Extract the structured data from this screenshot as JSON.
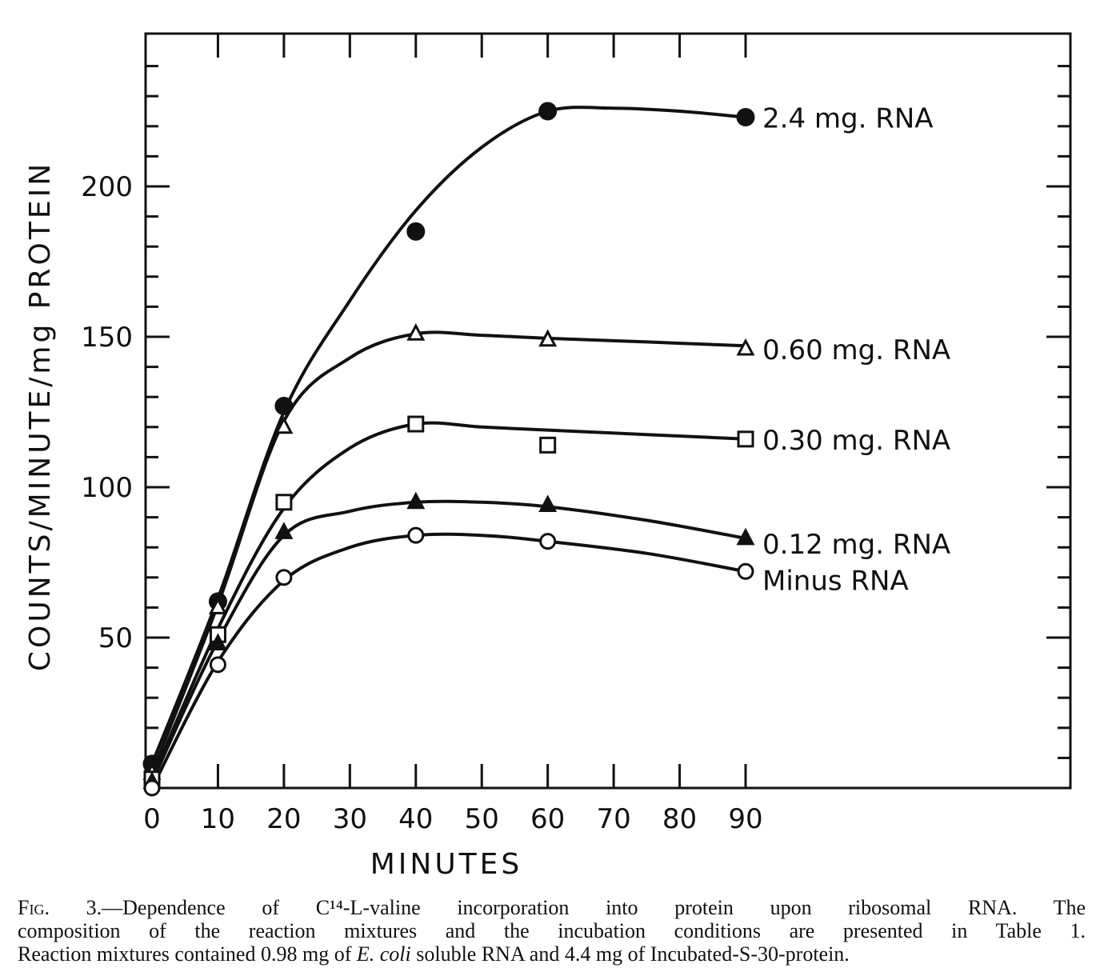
{
  "chart_data": {
    "type": "line",
    "title": "",
    "xlabel": "MINUTES",
    "ylabel": "COUNTS/MINUTE/mg PROTEIN",
    "xlim": [
      0,
      90
    ],
    "ylim": [
      0,
      250
    ],
    "x_ticks": [
      "0",
      "10",
      "20",
      "30",
      "40",
      "50",
      "60",
      "70",
      "80",
      "90"
    ],
    "y_ticks": [
      "50",
      "100",
      "150",
      "200"
    ],
    "grid": false,
    "series": [
      {
        "name": "2.4 mg. RNA",
        "marker": "filled-circle",
        "points": [
          [
            0,
            8
          ],
          [
            10,
            62
          ],
          [
            20,
            127
          ],
          [
            40,
            185
          ],
          [
            60,
            225
          ],
          [
            90,
            223
          ]
        ],
        "curve": [
          [
            0,
            8
          ],
          [
            10,
            63
          ],
          [
            20,
            125
          ],
          [
            30,
            162
          ],
          [
            40,
            192
          ],
          [
            50,
            213
          ],
          [
            60,
            225
          ],
          [
            70,
            226
          ],
          [
            80,
            225
          ],
          [
            90,
            223
          ]
        ]
      },
      {
        "name": "0.60 mg. RNA",
        "marker": "open-triangle",
        "points": [
          [
            0,
            5
          ],
          [
            10,
            60
          ],
          [
            20,
            120
          ],
          [
            40,
            151
          ],
          [
            60,
            149
          ],
          [
            90,
            146
          ]
        ],
        "curve": [
          [
            0,
            5
          ],
          [
            10,
            61
          ],
          [
            20,
            122
          ],
          [
            30,
            143
          ],
          [
            40,
            151
          ],
          [
            50,
            150.5
          ],
          [
            60,
            149.5
          ],
          [
            75,
            148.3
          ],
          [
            90,
            147
          ]
        ]
      },
      {
        "name": "0.30 mg. RNA",
        "marker": "open-square",
        "points": [
          [
            0,
            3
          ],
          [
            10,
            51
          ],
          [
            20,
            95
          ],
          [
            40,
            121
          ],
          [
            60,
            114
          ],
          [
            90,
            116
          ]
        ],
        "curve": [
          [
            0,
            3
          ],
          [
            10,
            53
          ],
          [
            20,
            93
          ],
          [
            30,
            113
          ],
          [
            40,
            121
          ],
          [
            50,
            120
          ],
          [
            60,
            119
          ],
          [
            75,
            117.5
          ],
          [
            90,
            116
          ]
        ]
      },
      {
        "name": "0.12 mg. RNA",
        "marker": "filled-triangle",
        "points": [
          [
            0,
            2
          ],
          [
            10,
            48
          ],
          [
            20,
            85
          ],
          [
            40,
            95
          ],
          [
            60,
            94
          ],
          [
            90,
            83
          ]
        ],
        "curve": [
          [
            0,
            2
          ],
          [
            10,
            49
          ],
          [
            20,
            84
          ],
          [
            30,
            92
          ],
          [
            40,
            95
          ],
          [
            50,
            95
          ],
          [
            60,
            93.5
          ],
          [
            75,
            89
          ],
          [
            90,
            83
          ]
        ]
      },
      {
        "name": "Minus RNA",
        "marker": "open-circle",
        "points": [
          [
            0,
            0
          ],
          [
            10,
            41
          ],
          [
            20,
            70
          ],
          [
            40,
            84
          ],
          [
            60,
            82
          ],
          [
            90,
            72
          ]
        ],
        "curve": [
          [
            0,
            0
          ],
          [
            10,
            42
          ],
          [
            20,
            69
          ],
          [
            30,
            80
          ],
          [
            40,
            84
          ],
          [
            50,
            84
          ],
          [
            60,
            82
          ],
          [
            75,
            78
          ],
          [
            90,
            72
          ]
        ]
      }
    ]
  },
  "caption": {
    "line1_prefix": "Fig. 3.",
    "line1_text": "—Dependence of C¹⁴-L-valine incorporation into protein upon ribosomal RNA.  The",
    "line2": "composition of the reaction mixtures and the incubation conditions are presented in Table 1.",
    "line3_a": "Reaction mixtures contained 0.98 mg of ",
    "line3_italic1": "E. coli",
    "line3_b": " soluble RNA and 4.4 mg of Incubated-S-30-protein."
  }
}
